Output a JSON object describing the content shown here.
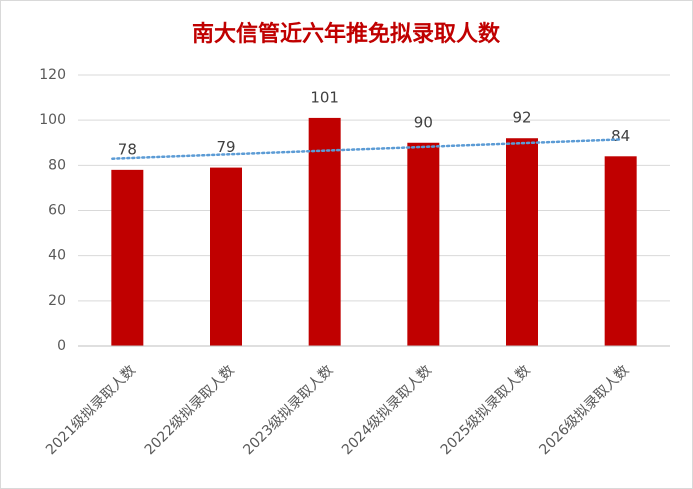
{
  "chart_data": {
    "type": "bar",
    "title": "南大信管近六年推免拟录取人数",
    "categories": [
      "2021级拟录取人数",
      "2022级拟录取人数",
      "2023级拟录取人数",
      "2024级拟录取人数",
      "2025级拟录取人数",
      "2026级拟录取人数"
    ],
    "values": [
      78,
      79,
      101,
      90,
      92,
      84
    ],
    "color": "#c00000",
    "ylim": [
      0,
      120
    ],
    "yticks": [
      0,
      20,
      40,
      60,
      80,
      100,
      120
    ],
    "grid": true,
    "trendline": {
      "type": "linear",
      "color": "#5b9bd5"
    }
  }
}
